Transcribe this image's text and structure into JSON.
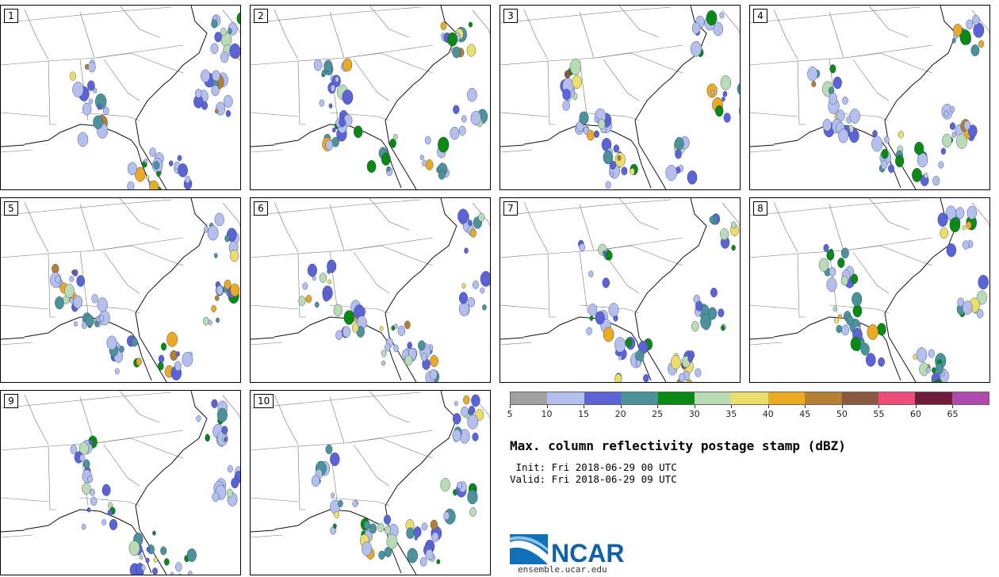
{
  "panels": [
    {
      "label": "1"
    },
    {
      "label": "2"
    },
    {
      "label": "3"
    },
    {
      "label": "4"
    },
    {
      "label": "5"
    },
    {
      "label": "6"
    },
    {
      "label": "7"
    },
    {
      "label": "8"
    },
    {
      "label": "9"
    },
    {
      "label": "10"
    }
  ],
  "colorbar": {
    "colors": [
      "#a0a0a0",
      "#b4bfee",
      "#5b63d6",
      "#4b9399",
      "#0a8a12",
      "#b9dcb4",
      "#ecde6a",
      "#eaaa22",
      "#b57f34",
      "#895940",
      "#ee4c7a",
      "#6e1c3a",
      "#b04ab0"
    ],
    "ticks": [
      "5",
      "10",
      "15",
      "20",
      "25",
      "30",
      "35",
      "40",
      "45",
      "50",
      "55",
      "60",
      "65"
    ]
  },
  "title": "Max. column reflectivity postage stamp (dBZ)",
  "init": " Init: Fri 2018-06-29 00 UTC",
  "valid": "Valid: Fri 2018-06-29 09 UTC",
  "logo_text": "NCAR",
  "url": "ensemble.ucar.edu"
}
